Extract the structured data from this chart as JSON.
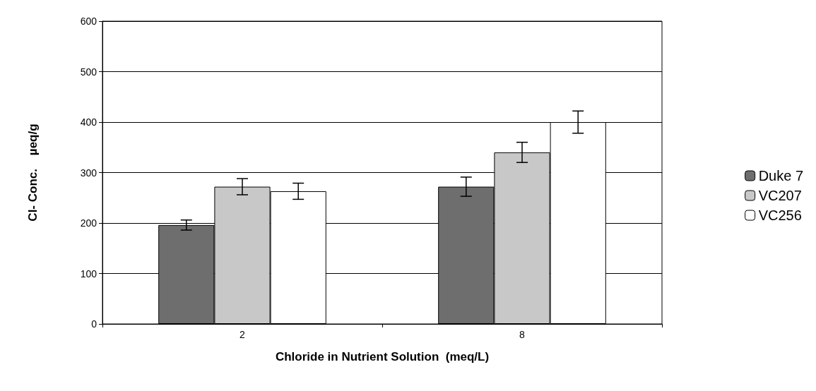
{
  "chart_data": {
    "type": "bar",
    "xlabel": "Chloride in Nutrient Solution  (meq/L)",
    "ylabel": "Cl- Conc.    µeq/g",
    "categories": [
      "2",
      "8"
    ],
    "series": [
      {
        "name": "Duke 7",
        "color": "#6e6e6e",
        "values": [
          196,
          272
        ],
        "errors": [
          10,
          19
        ]
      },
      {
        "name": "VC207",
        "color": "#c8c8c8",
        "values": [
          272,
          340
        ],
        "errors": [
          16,
          20
        ]
      },
      {
        "name": "VC256",
        "color": "#ffffff",
        "values": [
          263,
          400
        ],
        "errors": [
          16,
          22
        ]
      }
    ],
    "ylim": [
      0,
      600
    ],
    "yticks": [
      0,
      100,
      200,
      300,
      400,
      500,
      600
    ],
    "grid": "y",
    "legend": "right"
  }
}
